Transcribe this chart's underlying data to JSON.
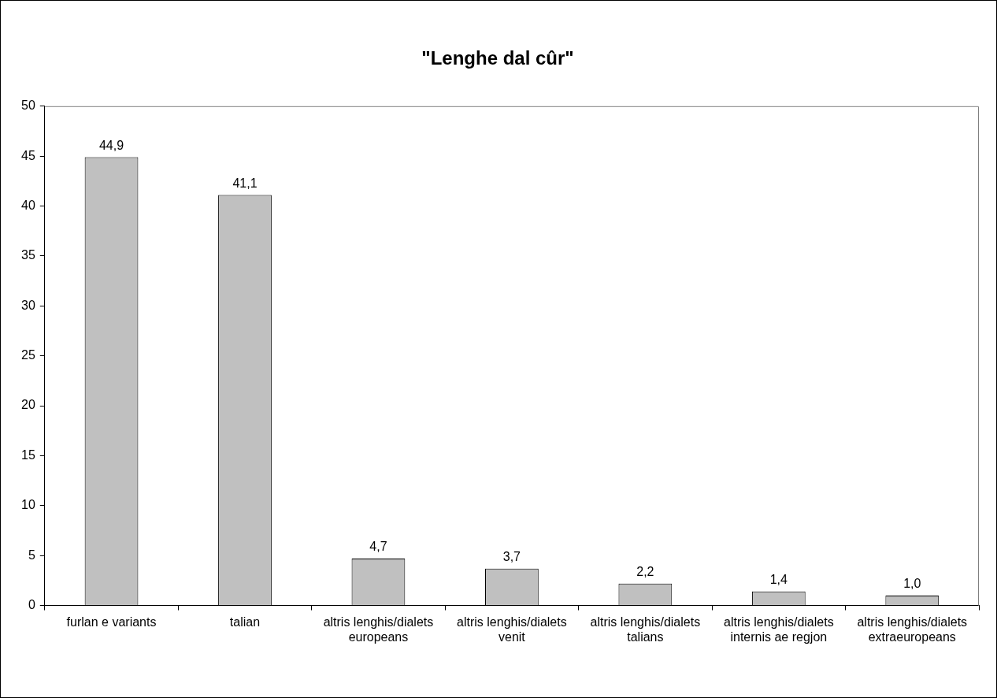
{
  "chart_data": {
    "type": "bar",
    "title": "\"Lenghe dal cûr\"",
    "categories": [
      "furlan e variants",
      "talian",
      "altris lenghis/dialets europeans",
      "altris lenghis/dialets venit",
      "altris lenghis/dialets talians",
      "altris lenghis/dialets internis ae regjon",
      "altris lenghis/dialets extraeuropeans"
    ],
    "values": [
      44.9,
      41.1,
      4.7,
      3.7,
      2.2,
      1.4,
      1.0
    ],
    "value_labels": [
      "44,9",
      "41,1",
      "4,7",
      "3,7",
      "2,2",
      "1,4",
      "1,0"
    ],
    "color": "#c0c0c0",
    "ylim": [
      0,
      50
    ],
    "yticks": [
      0,
      5,
      10,
      15,
      20,
      25,
      30,
      35,
      40,
      45,
      50
    ],
    "grid": false,
    "legend": false
  }
}
